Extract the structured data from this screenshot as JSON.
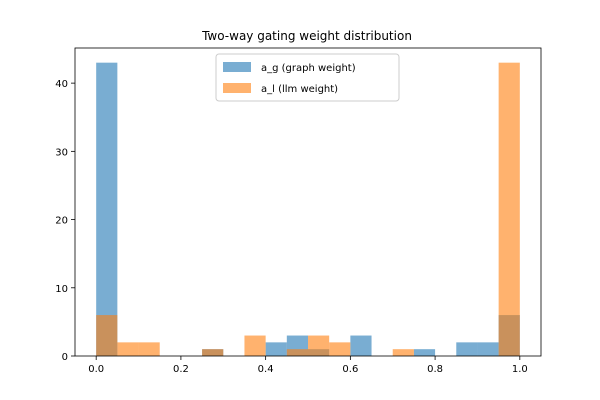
{
  "chart_data": {
    "type": "bar",
    "title": "Two-way gating weight distribution",
    "xlabel": "",
    "ylabel": "",
    "xlim": [
      -0.05,
      1.05
    ],
    "ylim": [
      0,
      45.15
    ],
    "xticks": [
      0.0,
      0.2,
      0.4,
      0.6,
      0.8,
      1.0
    ],
    "xtick_labels": [
      "0.0",
      "0.2",
      "0.4",
      "0.6",
      "0.8",
      "1.0"
    ],
    "yticks": [
      0,
      10,
      20,
      30,
      40
    ],
    "ytick_labels": [
      "0",
      "10",
      "20",
      "30",
      "40"
    ],
    "grid": false,
    "legend_position": "top-center",
    "bin_edges": [
      0.0,
      0.05,
      0.1,
      0.15,
      0.2,
      0.25,
      0.3,
      0.35,
      0.4,
      0.45,
      0.5,
      0.55,
      0.6,
      0.65,
      0.7,
      0.75,
      0.8,
      0.85,
      0.9,
      0.95,
      1.0
    ],
    "series": [
      {
        "name": "a_g (graph weight)",
        "color": "#1f77b4",
        "opacity": 0.6,
        "counts": [
          43,
          0,
          0,
          0,
          0,
          1,
          0,
          0,
          2,
          3,
          1,
          0,
          3,
          0,
          0,
          1,
          0,
          2,
          2,
          6
        ]
      },
      {
        "name": "a_l (llm weight)",
        "color": "#ff7f0e",
        "opacity": 0.6,
        "counts": [
          6,
          2,
          2,
          0,
          0,
          1,
          0,
          3,
          0,
          1,
          3,
          2,
          0,
          0,
          1,
          0,
          0,
          0,
          0,
          43
        ]
      }
    ]
  }
}
